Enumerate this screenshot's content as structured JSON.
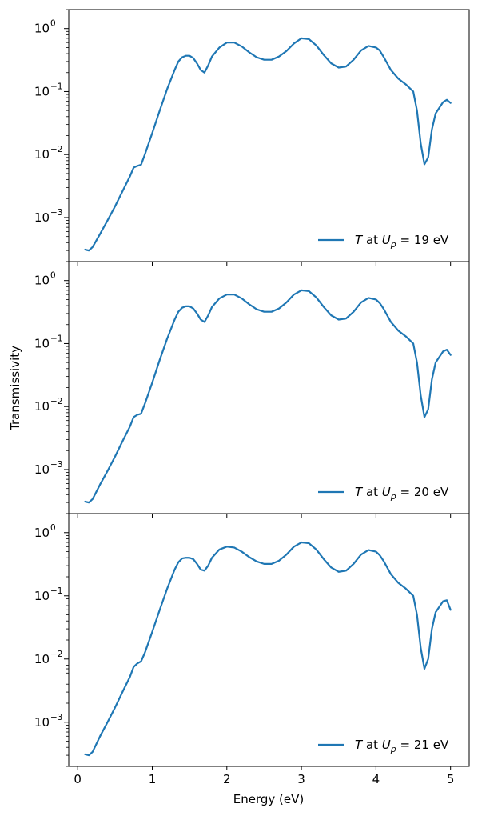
{
  "figure": {
    "shared_xlabel": "Energy (eV)",
    "shared_ylabel": "Transmissivity"
  },
  "chart_data": [
    {
      "type": "line",
      "yscale": "log",
      "xlim": [
        -0.12,
        5.25
      ],
      "ylim": [
        0.0002,
        2.0
      ],
      "xticks": [
        0,
        1,
        2,
        3,
        4,
        5
      ],
      "xticklabels": [
        "",
        "",
        "",
        "",
        "",
        ""
      ],
      "yticks": [
        0.001,
        0.01,
        0.1,
        1
      ],
      "yticklabel_mantissas": [
        "10",
        "10",
        "10",
        "10"
      ],
      "yticklabel_exponents": [
        "−3",
        "−2",
        "−1",
        "0"
      ],
      "legend": {
        "placement": "lower-right",
        "symbol": "T",
        "mid": " at ",
        "sub_symbol": "U",
        "sub": "p",
        "value": " = 19 eV"
      },
      "series": [
        {
          "color": "#1f77b4",
          "x": [
            0.1,
            0.15,
            0.2,
            0.3,
            0.4,
            0.5,
            0.6,
            0.7,
            0.75,
            0.8,
            0.85,
            0.9,
            1.0,
            1.1,
            1.2,
            1.3,
            1.35,
            1.4,
            1.45,
            1.5,
            1.55,
            1.6,
            1.65,
            1.7,
            1.75,
            1.8,
            1.9,
            2.0,
            2.1,
            2.2,
            2.3,
            2.4,
            2.5,
            2.6,
            2.7,
            2.8,
            2.9,
            3.0,
            3.1,
            3.2,
            3.3,
            3.4,
            3.5,
            3.6,
            3.7,
            3.8,
            3.9,
            4.0,
            4.05,
            4.1,
            4.2,
            4.3,
            4.4,
            4.5,
            4.55,
            4.6,
            4.65,
            4.7,
            4.75,
            4.8,
            4.9,
            4.95,
            5.0
          ],
          "y": [
            0.00031,
            0.0003,
            0.00034,
            0.00055,
            0.0009,
            0.0015,
            0.0026,
            0.0045,
            0.0062,
            0.0066,
            0.0069,
            0.01,
            0.022,
            0.05,
            0.11,
            0.22,
            0.3,
            0.35,
            0.37,
            0.37,
            0.34,
            0.28,
            0.22,
            0.2,
            0.26,
            0.36,
            0.5,
            0.6,
            0.6,
            0.52,
            0.42,
            0.35,
            0.32,
            0.32,
            0.36,
            0.44,
            0.58,
            0.7,
            0.68,
            0.54,
            0.38,
            0.28,
            0.24,
            0.25,
            0.32,
            0.45,
            0.53,
            0.5,
            0.45,
            0.36,
            0.22,
            0.16,
            0.13,
            0.1,
            0.05,
            0.015,
            0.007,
            0.009,
            0.025,
            0.045,
            0.068,
            0.074,
            0.066
          ]
        }
      ]
    },
    {
      "type": "line",
      "yscale": "log",
      "xlim": [
        -0.12,
        5.25
      ],
      "ylim": [
        0.0002,
        2.0
      ],
      "xticks": [
        0,
        1,
        2,
        3,
        4,
        5
      ],
      "xticklabels": [
        "",
        "",
        "",
        "",
        "",
        ""
      ],
      "yticks": [
        0.001,
        0.01,
        0.1,
        1
      ],
      "yticklabel_mantissas": [
        "10",
        "10",
        "10",
        "10"
      ],
      "yticklabel_exponents": [
        "−3",
        "−2",
        "−1",
        "0"
      ],
      "legend": {
        "placement": "lower-right",
        "symbol": "T",
        "mid": " at ",
        "sub_symbol": "U",
        "sub": "p",
        "value": " = 20 eV"
      },
      "series": [
        {
          "color": "#1f77b4",
          "x": [
            0.1,
            0.15,
            0.2,
            0.3,
            0.4,
            0.5,
            0.6,
            0.7,
            0.75,
            0.8,
            0.85,
            0.9,
            1.0,
            1.1,
            1.2,
            1.3,
            1.35,
            1.4,
            1.45,
            1.5,
            1.55,
            1.6,
            1.65,
            1.7,
            1.75,
            1.8,
            1.9,
            2.0,
            2.1,
            2.2,
            2.3,
            2.4,
            2.5,
            2.6,
            2.7,
            2.8,
            2.9,
            3.0,
            3.1,
            3.2,
            3.3,
            3.4,
            3.5,
            3.6,
            3.7,
            3.8,
            3.9,
            4.0,
            4.05,
            4.1,
            4.2,
            4.3,
            4.4,
            4.5,
            4.55,
            4.6,
            4.65,
            4.7,
            4.75,
            4.8,
            4.9,
            4.95,
            5.0
          ],
          "y": [
            0.00031,
            0.0003,
            0.00034,
            0.00058,
            0.00095,
            0.0016,
            0.0028,
            0.0048,
            0.0068,
            0.0074,
            0.0077,
            0.011,
            0.024,
            0.055,
            0.12,
            0.24,
            0.32,
            0.37,
            0.39,
            0.39,
            0.36,
            0.3,
            0.24,
            0.22,
            0.28,
            0.38,
            0.52,
            0.6,
            0.6,
            0.52,
            0.42,
            0.35,
            0.32,
            0.32,
            0.36,
            0.45,
            0.6,
            0.7,
            0.68,
            0.54,
            0.38,
            0.28,
            0.24,
            0.25,
            0.32,
            0.45,
            0.53,
            0.5,
            0.44,
            0.36,
            0.22,
            0.16,
            0.13,
            0.1,
            0.05,
            0.015,
            0.0068,
            0.009,
            0.027,
            0.05,
            0.075,
            0.08,
            0.066
          ]
        }
      ]
    },
    {
      "type": "line",
      "yscale": "log",
      "xlim": [
        -0.12,
        5.25
      ],
      "ylim": [
        0.0002,
        2.0
      ],
      "xticks": [
        0,
        1,
        2,
        3,
        4,
        5
      ],
      "xticklabels": [
        "0",
        "1",
        "2",
        "3",
        "4",
        "5"
      ],
      "yticks": [
        0.001,
        0.01,
        0.1,
        1
      ],
      "yticklabel_mantissas": [
        "10",
        "10",
        "10",
        "10"
      ],
      "yticklabel_exponents": [
        "−3",
        "−2",
        "−1",
        "0"
      ],
      "legend": {
        "placement": "lower-right",
        "symbol": "T",
        "mid": " at ",
        "sub_symbol": "U",
        "sub": "p",
        "value": " = 21 eV"
      },
      "series": [
        {
          "color": "#1f77b4",
          "x": [
            0.1,
            0.15,
            0.2,
            0.3,
            0.4,
            0.5,
            0.6,
            0.7,
            0.75,
            0.8,
            0.85,
            0.9,
            1.0,
            1.1,
            1.2,
            1.3,
            1.35,
            1.4,
            1.45,
            1.5,
            1.55,
            1.6,
            1.65,
            1.7,
            1.75,
            1.8,
            1.9,
            2.0,
            2.1,
            2.2,
            2.3,
            2.4,
            2.5,
            2.6,
            2.7,
            2.8,
            2.9,
            3.0,
            3.1,
            3.2,
            3.3,
            3.4,
            3.5,
            3.6,
            3.7,
            3.8,
            3.9,
            4.0,
            4.05,
            4.1,
            4.2,
            4.3,
            4.4,
            4.5,
            4.55,
            4.6,
            4.65,
            4.7,
            4.75,
            4.8,
            4.9,
            4.95,
            5.0
          ],
          "y": [
            0.00031,
            0.0003,
            0.00034,
            0.0006,
            0.001,
            0.0017,
            0.003,
            0.0052,
            0.0075,
            0.0085,
            0.0092,
            0.0125,
            0.027,
            0.06,
            0.13,
            0.26,
            0.34,
            0.39,
            0.4,
            0.4,
            0.38,
            0.32,
            0.26,
            0.25,
            0.3,
            0.4,
            0.54,
            0.6,
            0.58,
            0.5,
            0.41,
            0.35,
            0.32,
            0.32,
            0.36,
            0.45,
            0.6,
            0.7,
            0.68,
            0.54,
            0.38,
            0.28,
            0.24,
            0.25,
            0.32,
            0.45,
            0.53,
            0.5,
            0.44,
            0.36,
            0.22,
            0.16,
            0.13,
            0.1,
            0.05,
            0.015,
            0.007,
            0.01,
            0.03,
            0.055,
            0.082,
            0.085,
            0.06
          ]
        }
      ]
    }
  ]
}
